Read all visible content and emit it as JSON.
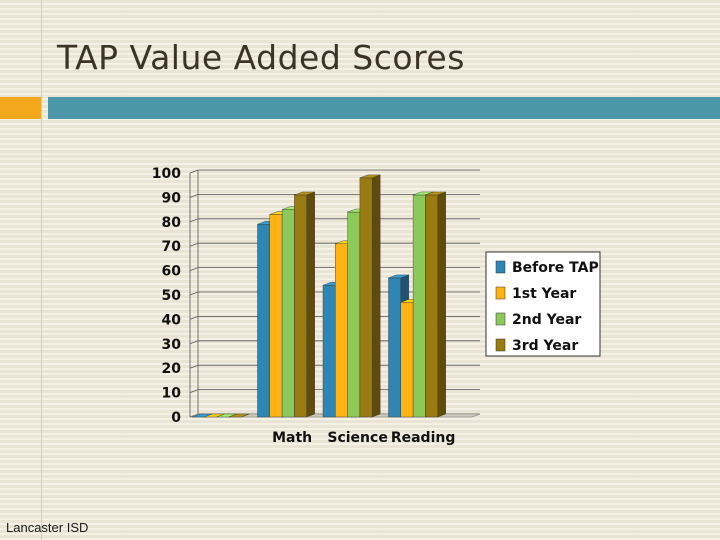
{
  "slide": {
    "title": "TAP Value Added Scores",
    "footer": "Lancaster ISD"
  },
  "colors": {
    "accent_orange": "#f2a81d",
    "accent_teal": "#4b97a8"
  },
  "chart_data": {
    "type": "bar",
    "categories": [
      "",
      "Math",
      "Science",
      "Reading"
    ],
    "series": [
      {
        "name": "Before TAP",
        "color": "#2e86b4",
        "values": [
          0,
          79,
          54,
          57
        ]
      },
      {
        "name": "1st Year",
        "color": "#ffb312",
        "values": [
          0,
          83,
          71,
          47
        ]
      },
      {
        "name": "2nd Year",
        "color": "#8cc95b",
        "values": [
          0,
          85,
          84,
          91
        ]
      },
      {
        "name": "3rd Year",
        "color": "#9a7b12",
        "values": [
          0,
          91,
          98,
          91
        ]
      }
    ],
    "ylim": [
      0,
      100
    ],
    "yticks": [
      0,
      10,
      20,
      30,
      40,
      50,
      60,
      70,
      80,
      90,
      100
    ],
    "grid": true,
    "legend": "right",
    "style": "3d-clustered-column"
  }
}
